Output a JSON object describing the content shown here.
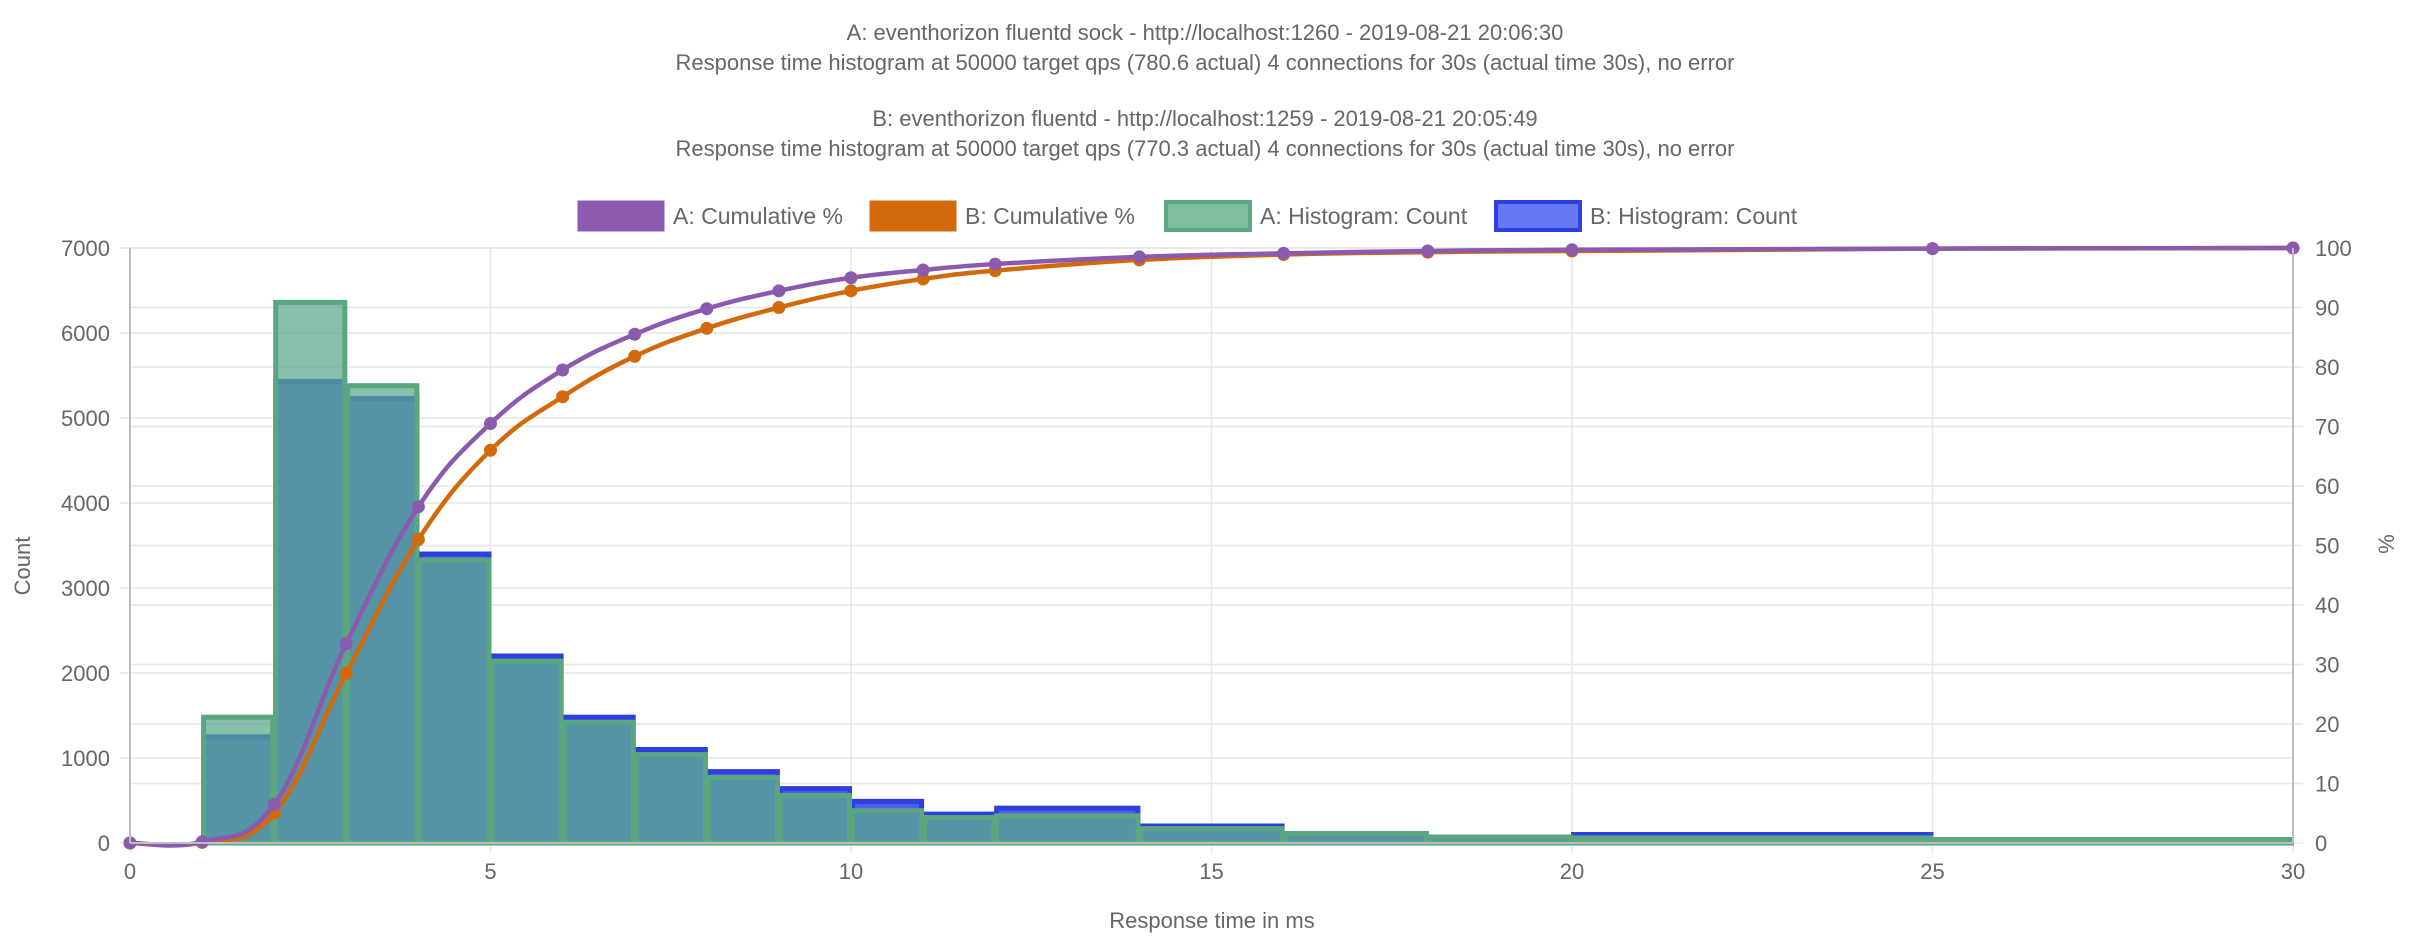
{
  "chart_data": {
    "type": "bar",
    "titles": [
      "A: eventhorizon fluentd sock - http://localhost:1260 - 2019-08-21 20:06:30",
      "Response time histogram at 50000 target qps (780.6 actual) 4 connections for 30s (actual time 30s), no error",
      "B: eventhorizon fluentd - http://localhost:1259 - 2019-08-21 20:05:49",
      "Response time histogram at 50000 target qps (770.3 actual) 4 connections for 30s (actual time 30s), no error"
    ],
    "xlabel": "Response time in ms",
    "ylabel_left": "Count",
    "ylabel_right": "%",
    "xlim": [
      0,
      30
    ],
    "ylim_left": [
      0,
      7000
    ],
    "ylim_right": [
      0,
      100
    ],
    "x_ticks": [
      "0",
      "5",
      "10",
      "15",
      "20",
      "25",
      "30"
    ],
    "y_left_ticks": [
      "0",
      "1000",
      "2000",
      "3000",
      "4000",
      "5000",
      "6000",
      "7000"
    ],
    "y_right_ticks": [
      "0",
      "10",
      "20",
      "30",
      "40",
      "50",
      "60",
      "70",
      "80",
      "90",
      "100"
    ],
    "grid": true,
    "legend_position": "top-center",
    "legend": [
      {
        "label": "A: Cumulative %",
        "fill": "#8b5aae",
        "stroke": "#8b5aae"
      },
      {
        "label": "B: Cumulative %",
        "fill": "#d2690a",
        "stroke": "#d2690a"
      },
      {
        "label": "A: Histogram: Count",
        "fill": "#7fbf9f",
        "stroke": "#5aa680"
      },
      {
        "label": "B: Histogram: Count",
        "fill": "#6578f0",
        "stroke": "#2e3fe0"
      }
    ],
    "series": [
      {
        "name": "A: Histogram: Count",
        "kind": "histogram",
        "bins": [
          {
            "start": 1,
            "end": 2,
            "count": 1480
          },
          {
            "start": 2,
            "end": 3,
            "count": 6360
          },
          {
            "start": 3,
            "end": 4,
            "count": 5380
          },
          {
            "start": 4,
            "end": 5,
            "count": 3330
          },
          {
            "start": 5,
            "end": 6,
            "count": 2140
          },
          {
            "start": 6,
            "end": 7,
            "count": 1420
          },
          {
            "start": 7,
            "end": 8,
            "count": 1040
          },
          {
            "start": 8,
            "end": 9,
            "count": 770
          },
          {
            "start": 9,
            "end": 10,
            "count": 560
          },
          {
            "start": 10,
            "end": 11,
            "count": 380
          },
          {
            "start": 11,
            "end": 12,
            "count": 300
          },
          {
            "start": 12,
            "end": 14,
            "count": 320
          },
          {
            "start": 14,
            "end": 16,
            "count": 170
          },
          {
            "start": 16,
            "end": 18,
            "count": 110
          },
          {
            "start": 18,
            "end": 20,
            "count": 70
          },
          {
            "start": 20,
            "end": 25,
            "count": 60
          },
          {
            "start": 25,
            "end": 30,
            "count": 40
          }
        ]
      },
      {
        "name": "B: Histogram: Count",
        "kind": "histogram",
        "bins": [
          {
            "start": 1,
            "end": 2,
            "count": 1250
          },
          {
            "start": 2,
            "end": 3,
            "count": 5430
          },
          {
            "start": 3,
            "end": 4,
            "count": 5230
          },
          {
            "start": 4,
            "end": 5,
            "count": 3400
          },
          {
            "start": 5,
            "end": 6,
            "count": 2200
          },
          {
            "start": 6,
            "end": 7,
            "count": 1480
          },
          {
            "start": 7,
            "end": 8,
            "count": 1100
          },
          {
            "start": 8,
            "end": 9,
            "count": 840
          },
          {
            "start": 9,
            "end": 10,
            "count": 640
          },
          {
            "start": 10,
            "end": 11,
            "count": 490
          },
          {
            "start": 11,
            "end": 12,
            "count": 340
          },
          {
            "start": 12,
            "end": 14,
            "count": 410
          },
          {
            "start": 14,
            "end": 16,
            "count": 200
          },
          {
            "start": 16,
            "end": 18,
            "count": 110
          },
          {
            "start": 18,
            "end": 20,
            "count": 70
          },
          {
            "start": 20,
            "end": 25,
            "count": 100
          },
          {
            "start": 25,
            "end": 30,
            "count": 40
          }
        ]
      },
      {
        "name": "A: Cumulative %",
        "kind": "cumulative",
        "points": [
          [
            0,
            0
          ],
          [
            1,
            0.2
          ],
          [
            2,
            6.5
          ],
          [
            3,
            33.5
          ],
          [
            4,
            56.5
          ],
          [
            5,
            70.5
          ],
          [
            6,
            79.5
          ],
          [
            7,
            85.5
          ],
          [
            8,
            89.8
          ],
          [
            9,
            92.8
          ],
          [
            10,
            95.0
          ],
          [
            11,
            96.3
          ],
          [
            12,
            97.3
          ],
          [
            14,
            98.5
          ],
          [
            16,
            99.1
          ],
          [
            18,
            99.5
          ],
          [
            20,
            99.7
          ],
          [
            25,
            99.9
          ],
          [
            30,
            100
          ]
        ]
      },
      {
        "name": "B: Cumulative %",
        "kind": "cumulative",
        "points": [
          [
            0,
            0
          ],
          [
            1,
            0.1
          ],
          [
            2,
            5.0
          ],
          [
            3,
            28.5
          ],
          [
            4,
            51.0
          ],
          [
            5,
            66.0
          ],
          [
            6,
            75.0
          ],
          [
            7,
            81.8
          ],
          [
            8,
            86.5
          ],
          [
            9,
            90.0
          ],
          [
            10,
            92.8
          ],
          [
            11,
            94.8
          ],
          [
            12,
            96.2
          ],
          [
            14,
            98.0
          ],
          [
            16,
            98.9
          ],
          [
            18,
            99.3
          ],
          [
            20,
            99.5
          ],
          [
            25,
            99.9
          ],
          [
            30,
            100
          ]
        ]
      }
    ]
  }
}
